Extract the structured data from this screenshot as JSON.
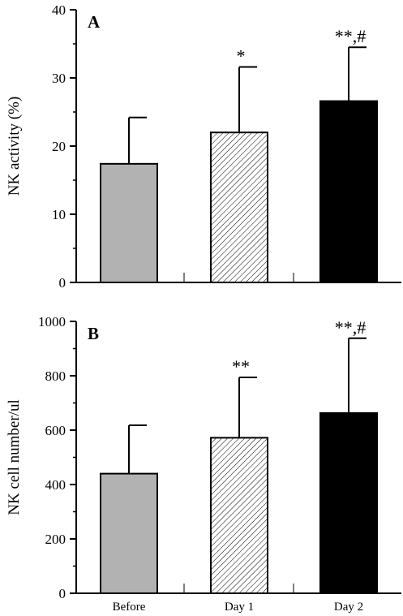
{
  "chart_data": [
    {
      "type": "bar",
      "panel_label": "A",
      "categories": [
        "Before",
        "Day 1",
        "Day 2"
      ],
      "values": [
        17.4,
        22.0,
        26.6
      ],
      "errors": [
        6.8,
        9.6,
        7.9
      ],
      "annotations": [
        "",
        "*",
        "**,#"
      ],
      "ylabel": "NK activity (%)",
      "xlabel": "",
      "ylim": [
        0,
        40
      ],
      "yticks": [
        "0",
        "10",
        "20",
        "30",
        "40"
      ],
      "show_category_labels": false,
      "grid": false
    },
    {
      "type": "bar",
      "panel_label": "B",
      "categories": [
        "Before",
        "Day 1",
        "Day 2"
      ],
      "values": [
        440,
        572,
        663
      ],
      "errors": [
        178,
        222,
        275
      ],
      "annotations": [
        "",
        "**",
        "**,#"
      ],
      "ylabel": "NK cell number/ul",
      "xlabel": "",
      "ylim": [
        0,
        1000
      ],
      "yticks": [
        "0",
        "200",
        "400",
        "600",
        "800",
        "1000"
      ],
      "show_category_labels": true,
      "grid": false
    }
  ],
  "bar_styles": [
    {
      "fill": "#b2b2b2",
      "pattern": "solid"
    },
    {
      "fill": "#ffffff",
      "pattern": "diagonal-hatch"
    },
    {
      "fill": "#000000",
      "pattern": "solid"
    }
  ]
}
